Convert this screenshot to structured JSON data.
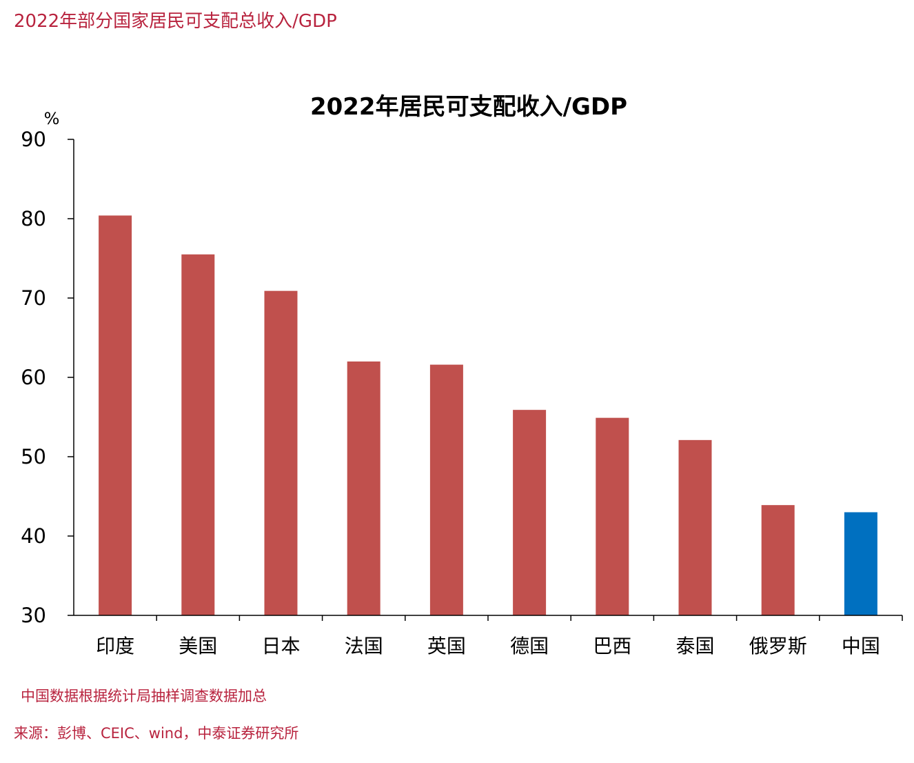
{
  "page": {
    "heading": "2022年部分国家居民可支配总收入/GDP",
    "note": "中国数据根据统计局抽样调查数据加总",
    "source": "来源：彭博、CEIC、wind，中泰证券研究所"
  },
  "colors": {
    "text_accent": "#b8233e",
    "bar_default": "#c0504d",
    "bar_highlight": "#0070c0"
  },
  "chart_data": {
    "type": "bar",
    "title": "2022年居民可支配收入/GDP",
    "ylabel": "%",
    "xlabel": "",
    "ylim": [
      30,
      90
    ],
    "yticks": [
      30,
      40,
      50,
      60,
      70,
      80,
      90
    ],
    "grid": false,
    "legend": "none",
    "categories": [
      "印度",
      "美国",
      "日本",
      "法国",
      "英国",
      "德国",
      "巴西",
      "泰国",
      "俄罗斯",
      "中国"
    ],
    "values": [
      80.4,
      75.5,
      70.9,
      62.0,
      61.6,
      55.9,
      54.9,
      52.1,
      43.9,
      43.0
    ],
    "highlight": [
      "中国"
    ]
  }
}
